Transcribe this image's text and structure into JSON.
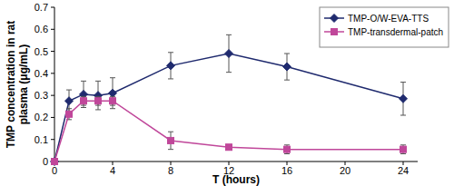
{
  "chart_data": {
    "type": "line",
    "x_label": "T (hours)",
    "y_label": "TMP concentration in rat plasma (μg/mL)",
    "x": [
      0,
      1,
      2,
      3,
      4,
      8,
      12,
      16,
      24
    ],
    "series": [
      {
        "name": "TMP-O/W-EVA-TTS",
        "color": "#1f2a6e",
        "marker": "diamond",
        "values": [
          0,
          0.275,
          0.305,
          0.3,
          0.31,
          0.435,
          0.49,
          0.43,
          0.285
        ],
        "errors": [
          0,
          0.05,
          0.06,
          0.065,
          0.07,
          0.06,
          0.085,
          0.06,
          0.075
        ]
      },
      {
        "name": "TMP-transdermal-patch",
        "color": "#c0479a",
        "marker": "square",
        "values": [
          0,
          0.215,
          0.275,
          0.275,
          0.275,
          0.095,
          0.065,
          0.055,
          0.055
        ],
        "errors": [
          0,
          0.025,
          0.02,
          0.02,
          0.02,
          0.04,
          0.01,
          0.02,
          0.02
        ]
      }
    ],
    "xlim": [
      0,
      25
    ],
    "xticks": [
      0,
      4,
      8,
      12,
      16,
      20,
      24
    ],
    "ylim": [
      0,
      0.7
    ],
    "yticks": [
      0,
      0.1,
      0.2,
      0.3,
      0.4,
      0.5,
      0.6,
      0.7
    ],
    "grid": false,
    "legend": "top-right"
  }
}
